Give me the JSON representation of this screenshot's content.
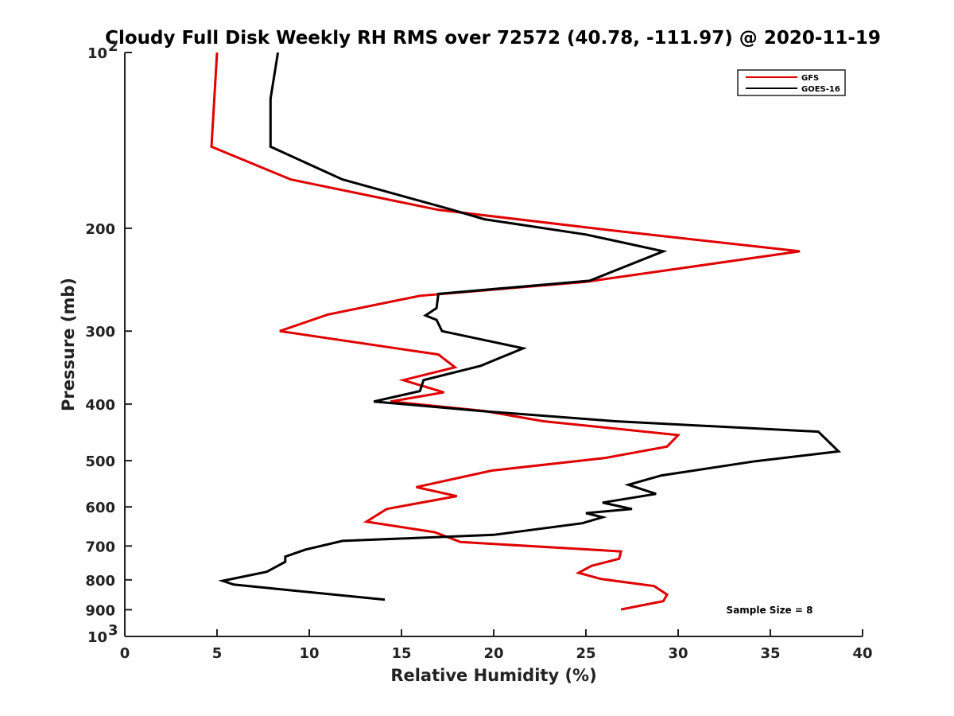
{
  "chart_data": {
    "type": "line",
    "title": "Cloudy Full Disk Weekly RH RMS over 72572 (40.78, -111.97) @ 2020-11-19",
    "xlabel": "Relative Humidity (%)",
    "ylabel": "Pressure (mb)",
    "xlim": [
      0,
      40
    ],
    "ylim": [
      100,
      1000
    ],
    "yscale": "log",
    "y_inverted": true,
    "x_ticks": [
      "0",
      "5",
      "10",
      "15",
      "20",
      "25",
      "30",
      "35",
      "40"
    ],
    "y_ticks": [
      {
        "value": 100,
        "label": "10",
        "sup": "2"
      },
      {
        "value": 200,
        "label": "200",
        "sup": ""
      },
      {
        "value": 300,
        "label": "300",
        "sup": ""
      },
      {
        "value": 400,
        "label": "400",
        "sup": ""
      },
      {
        "value": 500,
        "label": "500",
        "sup": ""
      },
      {
        "value": 600,
        "label": "600",
        "sup": ""
      },
      {
        "value": 700,
        "label": "700",
        "sup": ""
      },
      {
        "value": 800,
        "label": "800",
        "sup": ""
      },
      {
        "value": 900,
        "label": "900",
        "sup": ""
      },
      {
        "value": 1000,
        "label": "10",
        "sup": "3"
      }
    ],
    "legend_position": "top-right",
    "annotation": "Sample Size = 8",
    "series": [
      {
        "name": "GFS",
        "color": "#e00000",
        "rh": [
          5.0,
          4.7,
          9.0,
          17.0,
          26.0,
          36.6,
          25.0,
          16.0,
          11.0,
          8.4,
          17.0,
          17.9,
          15.1,
          17.3,
          14.4,
          19.5,
          22.7,
          30.0,
          29.4,
          26.0,
          19.9,
          15.8,
          18.0,
          14.2,
          13.1,
          16.8,
          18.2,
          26.9,
          26.8,
          25.3,
          24.6,
          25.8,
          28.7,
          29.4,
          29.2,
          26.9
        ],
        "pressure": [
          100,
          145,
          165,
          186,
          201,
          219,
          247,
          261,
          281,
          300,
          329,
          346,
          364,
          382,
          396,
          411,
          428,
          452,
          473,
          495,
          520,
          555,
          575,
          605,
          636,
          663,
          689,
          715,
          736,
          757,
          778,
          797,
          820,
          848,
          870,
          899
        ]
      },
      {
        "name": "GOES-16",
        "color": "#000000",
        "rh": [
          8.3,
          7.9,
          7.9,
          11.8,
          17.5,
          19.5,
          25.0,
          29.2,
          25.2,
          17.0,
          16.9,
          16.3,
          16.9,
          17.2,
          21.6,
          19.3,
          16.2,
          16.0,
          13.5,
          19.3,
          26.6,
          37.6,
          38.7,
          34.2,
          29.1,
          27.3,
          28.8,
          25.9,
          27.5,
          25.0,
          25.9,
          24.8,
          20.0,
          11.8,
          9.8,
          8.7,
          8.7,
          7.7,
          5.3,
          5.9,
          14.1
        ],
        "pressure": [
          100,
          120,
          145,
          165,
          185,
          193,
          205,
          219,
          246,
          259,
          274,
          282,
          287,
          300,
          321,
          344,
          364,
          380,
          396,
          411,
          428,
          446,
          482,
          501,
          530,
          550,
          570,
          590,
          605,
          615,
          625,
          640,
          670,
          686,
          710,
          730,
          745,
          775,
          803,
          815,
          865
        ]
      }
    ]
  }
}
